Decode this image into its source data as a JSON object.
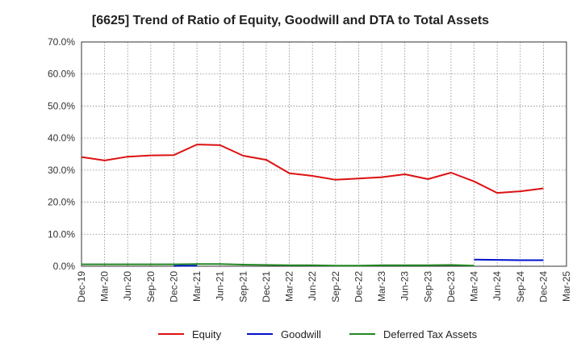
{
  "chart_data": {
    "type": "line",
    "title": "[6625]  Trend of Ratio of Equity, Goodwill and DTA to Total Assets",
    "xlabel": "",
    "ylabel": "",
    "ylim": [
      0,
      70
    ],
    "grid": true,
    "legend_position": "bottom",
    "y_ticks": [
      "0.0%",
      "10.0%",
      "20.0%",
      "30.0%",
      "40.0%",
      "50.0%",
      "60.0%",
      "70.0%"
    ],
    "y_tick_values": [
      0,
      10,
      20,
      30,
      40,
      50,
      60,
      70
    ],
    "categories": [
      "Dec-19",
      "Mar-20",
      "Jun-20",
      "Sep-20",
      "Dec-20",
      "Mar-21",
      "Jun-21",
      "Sep-21",
      "Dec-21",
      "Mar-22",
      "Jun-22",
      "Sep-22",
      "Dec-22",
      "Mar-23",
      "Jun-23",
      "Sep-23",
      "Dec-23",
      "Mar-24",
      "Jun-24",
      "Sep-24",
      "Dec-24",
      "Mar-25"
    ],
    "series": [
      {
        "name": "Equity",
        "color": "#dd1111",
        "values": [
          34.1,
          33.0,
          34.2,
          34.6,
          34.7,
          38.0,
          37.8,
          34.5,
          33.2,
          29.0,
          28.2,
          27.0,
          27.4,
          27.8,
          28.7,
          27.2,
          29.2,
          26.5,
          22.9,
          23.4,
          24.3,
          null
        ]
      },
      {
        "name": "Goodwill",
        "color": "#0011cc",
        "values": [
          null,
          null,
          null,
          null,
          0.1,
          0.2,
          null,
          null,
          null,
          null,
          null,
          null,
          null,
          null,
          null,
          null,
          null,
          2.1,
          2.0,
          1.9,
          1.9,
          null
        ]
      },
      {
        "name": "Deferred Tax Assets",
        "color": "#228822",
        "values": [
          0.6,
          0.6,
          0.6,
          0.6,
          0.6,
          0.7,
          0.7,
          0.5,
          0.4,
          0.3,
          0.3,
          0.2,
          0.2,
          0.3,
          0.3,
          0.3,
          0.4,
          0.2,
          null,
          null,
          null,
          null
        ]
      }
    ]
  }
}
